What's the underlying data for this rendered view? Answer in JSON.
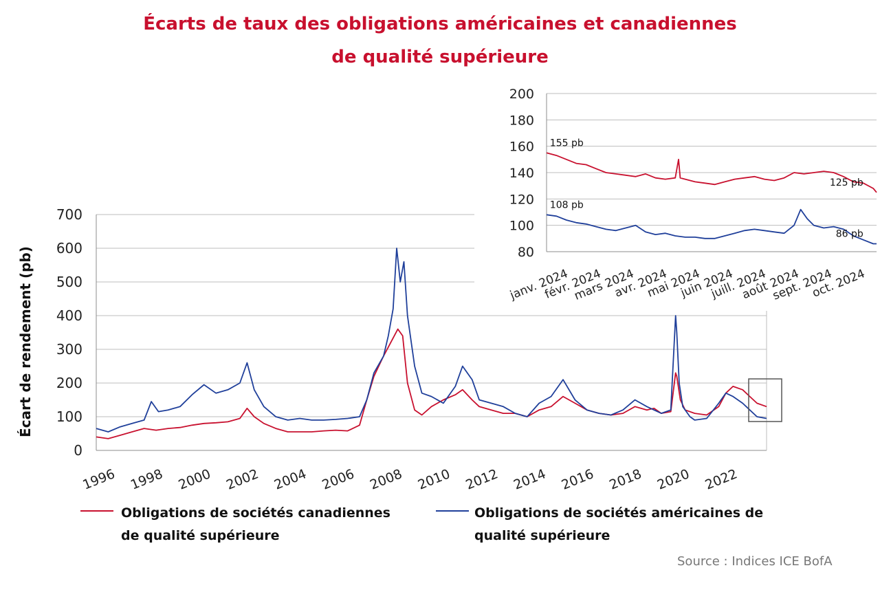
{
  "title_line1": "Écarts de taux des obligations américaines et canadiennes",
  "title_line2": "de qualité supérieure",
  "colors": {
    "canadian": "#c8102e",
    "us": "#1f3f9a",
    "grid": "#bdbdbd",
    "axis": "#8c8c8c"
  },
  "legend": {
    "canadian_line1": "Obligations de sociétés canadiennes",
    "canadian_line2": "de qualité supérieure",
    "us_line1": "Obligations de sociétés américaines de",
    "us_line2": "qualité supérieure"
  },
  "source": "Source : Indices ICE BofA",
  "chart_data": [
    {
      "type": "line",
      "ylabel": "Écart de rendement (pb)",
      "xlim": [
        1996,
        2024
      ],
      "ylim": [
        0,
        700
      ],
      "y_ticks": [
        "0",
        "100",
        "200",
        "300",
        "400",
        "500",
        "600",
        "700"
      ],
      "x_ticks": [
        "1996",
        "1998",
        "2000",
        "2002",
        "2004",
        "2006",
        "2008",
        "2010",
        "2012",
        "2014",
        "2016",
        "2018",
        "2020",
        "2022"
      ],
      "grid": true,
      "series": [
        {
          "name": "Obligations de sociétés canadiennes de qualité supérieure",
          "x": [
            1996.0,
            1996.5,
            1997.0,
            1997.5,
            1998.0,
            1998.5,
            1999.0,
            1999.5,
            2000.0,
            2000.5,
            2001.0,
            2001.5,
            2002.0,
            2002.3,
            2002.6,
            2003.0,
            2003.5,
            2004.0,
            2004.5,
            2005.0,
            2005.5,
            2006.0,
            2006.5,
            2007.0,
            2007.3,
            2007.6,
            2008.0,
            2008.3,
            2008.6,
            2008.8,
            2009.0,
            2009.3,
            2009.6,
            2010.0,
            2010.5,
            2011.0,
            2011.3,
            2011.7,
            2012.0,
            2012.5,
            2013.0,
            2013.5,
            2014.0,
            2014.5,
            2015.0,
            2015.5,
            2016.0,
            2016.5,
            2017.0,
            2017.5,
            2018.0,
            2018.5,
            2019.0,
            2019.3,
            2019.6,
            2020.0,
            2020.2,
            2020.25,
            2020.4,
            2020.6,
            2021.0,
            2021.5,
            2022.0,
            2022.3,
            2022.6,
            2023.0,
            2023.3,
            2023.6,
            2024.0
          ],
          "values": [
            40,
            35,
            45,
            55,
            65,
            60,
            65,
            68,
            75,
            80,
            82,
            85,
            95,
            125,
            100,
            80,
            65,
            55,
            55,
            55,
            58,
            60,
            58,
            75,
            150,
            220,
            280,
            320,
            360,
            340,
            200,
            120,
            105,
            130,
            150,
            165,
            180,
            150,
            130,
            120,
            110,
            110,
            100,
            120,
            130,
            160,
            140,
            120,
            110,
            105,
            110,
            130,
            120,
            125,
            110,
            115,
            230,
            220,
            150,
            120,
            110,
            105,
            130,
            170,
            190,
            180,
            160,
            140,
            130
          ]
        },
        {
          "name": "Obligations de sociétés américaines de qualité supérieure",
          "x": [
            1996.0,
            1996.5,
            1997.0,
            1997.5,
            1998.0,
            1998.3,
            1998.6,
            1999.0,
            1999.5,
            2000.0,
            2000.5,
            2001.0,
            2001.5,
            2002.0,
            2002.3,
            2002.6,
            2003.0,
            2003.5,
            2004.0,
            2004.5,
            2005.0,
            2005.5,
            2006.0,
            2006.5,
            2007.0,
            2007.3,
            2007.6,
            2008.0,
            2008.2,
            2008.4,
            2008.55,
            2008.7,
            2008.85,
            2009.0,
            2009.3,
            2009.6,
            2010.0,
            2010.5,
            2011.0,
            2011.3,
            2011.7,
            2012.0,
            2012.5,
            2013.0,
            2013.5,
            2014.0,
            2014.5,
            2015.0,
            2015.5,
            2016.0,
            2016.5,
            2017.0,
            2017.5,
            2018.0,
            2018.5,
            2019.0,
            2019.3,
            2019.6,
            2020.0,
            2020.2,
            2020.25,
            2020.35,
            2020.5,
            2020.8,
            2021.0,
            2021.5,
            2022.0,
            2022.3,
            2022.6,
            2023.0,
            2023.3,
            2023.6,
            2024.0
          ],
          "values": [
            65,
            55,
            70,
            80,
            90,
            145,
            115,
            120,
            130,
            165,
            195,
            170,
            180,
            200,
            260,
            180,
            130,
            100,
            90,
            95,
            90,
            90,
            92,
            95,
            100,
            150,
            230,
            280,
            340,
            420,
            600,
            500,
            560,
            400,
            250,
            170,
            160,
            140,
            190,
            250,
            210,
            150,
            140,
            130,
            110,
            100,
            140,
            160,
            210,
            150,
            120,
            110,
            105,
            120,
            150,
            130,
            120,
            110,
            120,
            400,
            350,
            200,
            130,
            100,
            90,
            95,
            140,
            170,
            160,
            140,
            120,
            100,
            95
          ]
        }
      ]
    },
    {
      "type": "line",
      "inset": true,
      "ylim": [
        80,
        200
      ],
      "y_ticks": [
        "80",
        "100",
        "120",
        "140",
        "160",
        "180",
        "200"
      ],
      "x_ticks": [
        "janv. 2024",
        "févr. 2024",
        "mars 2024",
        "avr. 2024",
        "mai 2024",
        "juin 2024",
        "juill. 2024",
        "août 2024",
        "sept. 2024",
        "oct. 2024"
      ],
      "x_range_months": [
        0,
        10
      ],
      "grid": true,
      "annotations": [
        {
          "text": "155 pb",
          "series": 0,
          "x": 0.1,
          "y": 155,
          "anchor": "start"
        },
        {
          "text": "125 pb",
          "series": 0,
          "x": 9.6,
          "y": 125,
          "anchor": "end"
        },
        {
          "text": "108 pb",
          "series": 1,
          "x": 0.1,
          "y": 108,
          "anchor": "start"
        },
        {
          "text": "86 pb",
          "series": 1,
          "x": 9.6,
          "y": 86,
          "anchor": "end"
        }
      ],
      "series": [
        {
          "name": "Obligations de sociétés canadiennes de qualité supérieure",
          "x": [
            0,
            0.3,
            0.6,
            0.9,
            1.2,
            1.5,
            1.8,
            2.1,
            2.4,
            2.7,
            3.0,
            3.3,
            3.6,
            3.9,
            4.0,
            4.05,
            4.2,
            4.5,
            4.8,
            5.1,
            5.4,
            5.7,
            6.0,
            6.3,
            6.6,
            6.9,
            7.2,
            7.5,
            7.8,
            8.1,
            8.4,
            8.7,
            9.0,
            9.3,
            9.6,
            9.9,
            10.0
          ],
          "values": [
            155,
            153,
            150,
            147,
            146,
            143,
            140,
            139,
            138,
            137,
            139,
            136,
            135,
            136,
            150,
            136,
            135,
            133,
            132,
            131,
            133,
            135,
            136,
            137,
            135,
            134,
            136,
            140,
            139,
            140,
            141,
            140,
            137,
            133,
            132,
            128,
            125
          ]
        },
        {
          "name": "Obligations de sociétés américaines de qualité supérieure",
          "x": [
            0,
            0.3,
            0.6,
            0.9,
            1.2,
            1.5,
            1.8,
            2.1,
            2.4,
            2.7,
            3.0,
            3.3,
            3.6,
            3.9,
            4.2,
            4.5,
            4.8,
            5.1,
            5.4,
            5.7,
            6.0,
            6.3,
            6.6,
            6.9,
            7.2,
            7.5,
            7.7,
            7.9,
            8.1,
            8.4,
            8.7,
            9.0,
            9.3,
            9.6,
            9.9,
            10.0
          ],
          "values": [
            108,
            107,
            104,
            102,
            101,
            99,
            97,
            96,
            98,
            100,
            95,
            93,
            94,
            92,
            91,
            91,
            90,
            90,
            92,
            94,
            96,
            97,
            96,
            95,
            94,
            100,
            112,
            105,
            100,
            98,
            99,
            97,
            92,
            89,
            86,
            86
          ]
        }
      ]
    }
  ]
}
